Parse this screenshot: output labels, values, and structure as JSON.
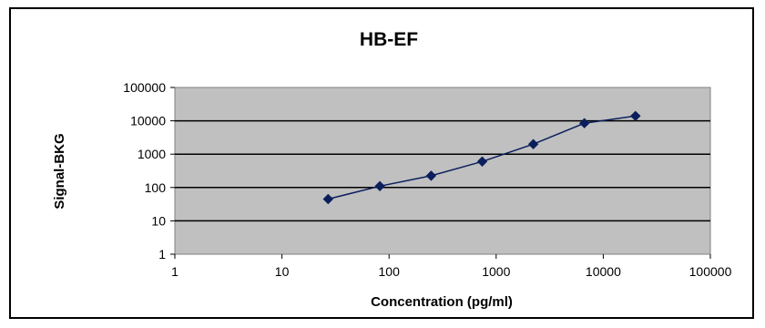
{
  "chart_data": {
    "type": "scatter",
    "title": "HB-EF",
    "xlabel": "Concentration (pg/ml)",
    "ylabel": "Signal-BKG",
    "xscale": "log",
    "yscale": "log",
    "xlim": [
      1,
      100000
    ],
    "ylim": [
      1,
      100000
    ],
    "x_ticks": [
      "1",
      "10",
      "100",
      "1000",
      "10000",
      "100000"
    ],
    "y_ticks": [
      "100000",
      "10000",
      "1000",
      "100",
      "10",
      "1"
    ],
    "grid": "horizontal major gridlines",
    "legend": "none",
    "series": [
      {
        "color": "#0a1f5c",
        "marker": "diamond",
        "line": true,
        "points": [
          {
            "x": 27,
            "y": 45
          },
          {
            "x": 82,
            "y": 110
          },
          {
            "x": 247,
            "y": 225
          },
          {
            "x": 741,
            "y": 600
          },
          {
            "x": 2222,
            "y": 2000
          },
          {
            "x": 6667,
            "y": 8500
          },
          {
            "x": 20000,
            "y": 14000
          }
        ]
      }
    ],
    "colors": {
      "plot_background": "#c0c0c0",
      "gridline": "#000000",
      "series": "#0a1f5c"
    }
  }
}
